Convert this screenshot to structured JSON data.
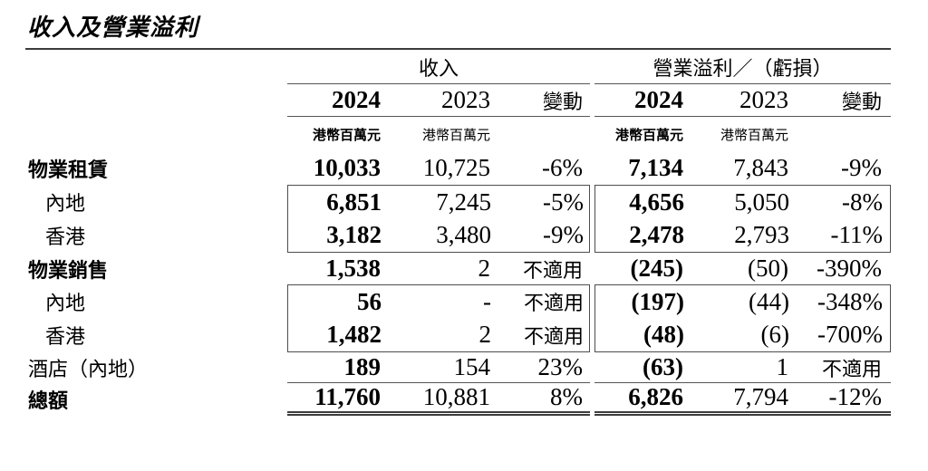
{
  "title": "收入及營業溢利",
  "colors": {
    "text": "#000000",
    "rule": "#555555",
    "heavy_rule": "#3d3d3d"
  },
  "table": {
    "group1": {
      "title": "收入",
      "y2024": "2024",
      "y2023": "2023",
      "change": "變動",
      "unit2024": "港幣百萬元",
      "unit2023": "港幣百萬元"
    },
    "group2": {
      "title": "營業溢利／（虧損）",
      "y2024": "2024",
      "y2023": "2023",
      "change": "變動",
      "unit2024": "港幣百萬元",
      "unit2023": "港幣百萬元"
    },
    "rows": [
      {
        "label": "物業租賃",
        "v": [
          "10,033",
          "10,725",
          "-6%",
          "7,134",
          "7,843",
          "-9%"
        ]
      },
      {
        "label": "內地",
        "v": [
          "6,851",
          "7,245",
          "-5%",
          "4,656",
          "5,050",
          "-8%"
        ]
      },
      {
        "label": "香港",
        "v": [
          "3,182",
          "3,480",
          "-9%",
          "2,478",
          "2,793",
          "-11%"
        ]
      },
      {
        "label": "物業銷售",
        "v": [
          "1,538",
          "2",
          "不適用",
          "(245)",
          "(50)",
          "-390%"
        ]
      },
      {
        "label": "內地",
        "v": [
          "56",
          "-",
          "不適用",
          "(197)",
          "(44)",
          "-348%"
        ]
      },
      {
        "label": "香港",
        "v": [
          "1,482",
          "2",
          "不適用",
          "(48)",
          "(6)",
          "-700%"
        ]
      },
      {
        "label": "酒店（內地）",
        "v": [
          "189",
          "154",
          "23%",
          "(63)",
          "1",
          "不適用"
        ]
      },
      {
        "label": "總額",
        "v": [
          "11,760",
          "10,881",
          "8%",
          "6,826",
          "7,794",
          "-12%"
        ]
      }
    ]
  }
}
